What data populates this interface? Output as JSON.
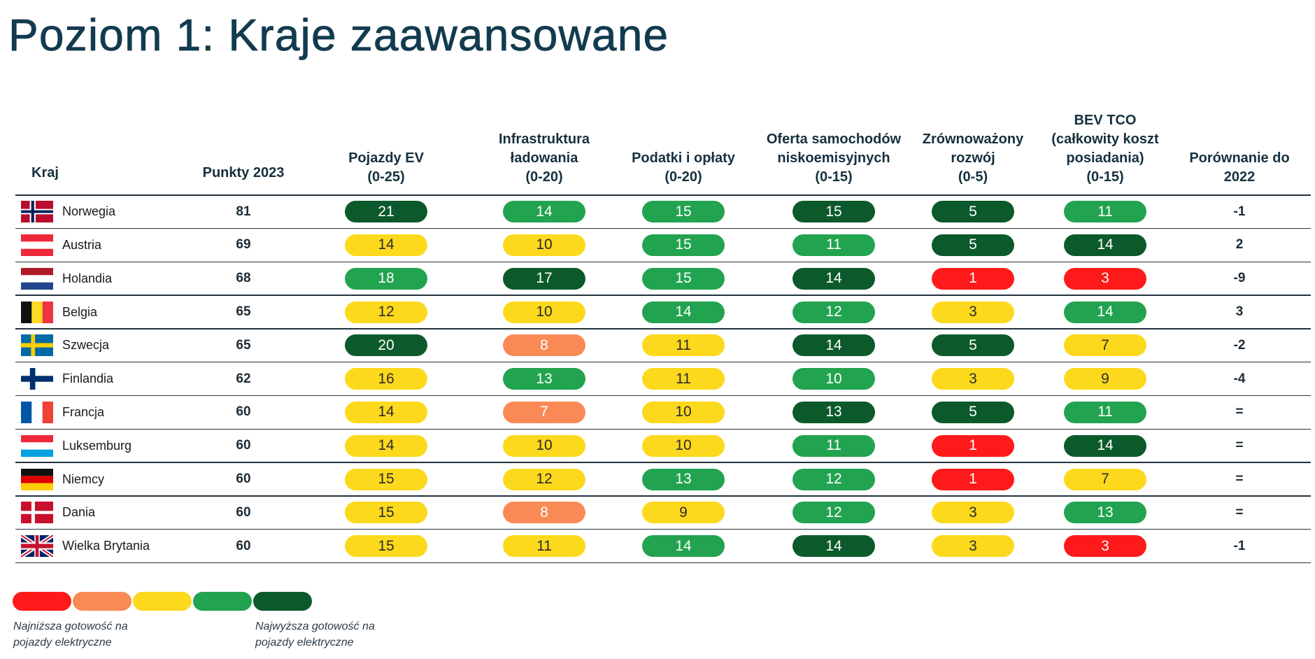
{
  "chart_data": {
    "type": "table",
    "title": "Poziom 1: Kraje zaawansowane",
    "columns": {
      "country": [
        "Kraj"
      ],
      "points": [
        "Punkty 2023"
      ],
      "ev": [
        "Pojazdy EV",
        "(0-25)"
      ],
      "charging": [
        "Infrastruktura",
        "ładowania",
        "(0-20)"
      ],
      "taxes": [
        "Podatki i opłaty",
        "(0-20)"
      ],
      "offer": [
        "Oferta samochodów",
        "niskoemisyjnych",
        "(0-15)"
      ],
      "sustainability": [
        "Zrównoważony",
        "rozwój",
        "(0-5)"
      ],
      "tco": [
        "BEV TCO",
        "(całkowity koszt",
        "posiadania)",
        "(0-15)"
      ],
      "change": [
        "Porównanie do",
        "2022"
      ]
    },
    "rows": [
      {
        "country": "Norwegia",
        "flag": "norway",
        "points": 81,
        "change": "-1",
        "scores": {
          "ev": {
            "value": 21,
            "level": 5
          },
          "charging": {
            "value": 14,
            "level": 4
          },
          "taxes": {
            "value": 15,
            "level": 4
          },
          "offer": {
            "value": 15,
            "level": 5
          },
          "sustainability": {
            "value": 5,
            "level": 5
          },
          "tco": {
            "value": 11,
            "level": 4
          }
        }
      },
      {
        "country": "Austria",
        "flag": "austria",
        "points": 69,
        "change": "2",
        "scores": {
          "ev": {
            "value": 14,
            "level": 3
          },
          "charging": {
            "value": 10,
            "level": 3
          },
          "taxes": {
            "value": 15,
            "level": 4
          },
          "offer": {
            "value": 11,
            "level": 4
          },
          "sustainability": {
            "value": 5,
            "level": 5
          },
          "tco": {
            "value": 14,
            "level": 5
          }
        }
      },
      {
        "country": "Holandia",
        "flag": "netherlands",
        "points": 68,
        "change": "-9",
        "scores": {
          "ev": {
            "value": 18,
            "level": 4
          },
          "charging": {
            "value": 17,
            "level": 5
          },
          "taxes": {
            "value": 15,
            "level": 4
          },
          "offer": {
            "value": 14,
            "level": 5
          },
          "sustainability": {
            "value": 1,
            "level": 1
          },
          "tco": {
            "value": 3,
            "level": 1
          }
        }
      },
      {
        "country": "Belgia",
        "flag": "belgium",
        "points": 65,
        "change": "3",
        "scores": {
          "ev": {
            "value": 12,
            "level": 3
          },
          "charging": {
            "value": 10,
            "level": 3
          },
          "taxes": {
            "value": 14,
            "level": 4
          },
          "offer": {
            "value": 12,
            "level": 4
          },
          "sustainability": {
            "value": 3,
            "level": 3
          },
          "tco": {
            "value": 14,
            "level": 4
          }
        }
      },
      {
        "country": "Szwecja",
        "flag": "sweden",
        "points": 65,
        "change": "-2",
        "scores": {
          "ev": {
            "value": 20,
            "level": 5
          },
          "charging": {
            "value": 8,
            "level": 2
          },
          "taxes": {
            "value": 11,
            "level": 3
          },
          "offer": {
            "value": 14,
            "level": 5
          },
          "sustainability": {
            "value": 5,
            "level": 5
          },
          "tco": {
            "value": 7,
            "level": 3
          }
        }
      },
      {
        "country": "Finlandia",
        "flag": "finland",
        "points": 62,
        "change": "-4",
        "scores": {
          "ev": {
            "value": 16,
            "level": 3
          },
          "charging": {
            "value": 13,
            "level": 4
          },
          "taxes": {
            "value": 11,
            "level": 3
          },
          "offer": {
            "value": 10,
            "level": 4
          },
          "sustainability": {
            "value": 3,
            "level": 3
          },
          "tco": {
            "value": 9,
            "level": 3
          }
        }
      },
      {
        "country": "Francja",
        "flag": "france",
        "points": 60,
        "change": "=",
        "scores": {
          "ev": {
            "value": 14,
            "level": 3
          },
          "charging": {
            "value": 7,
            "level": 2
          },
          "taxes": {
            "value": 10,
            "level": 3
          },
          "offer": {
            "value": 13,
            "level": 5
          },
          "sustainability": {
            "value": 5,
            "level": 5
          },
          "tco": {
            "value": 11,
            "level": 4
          }
        }
      },
      {
        "country": "Luksemburg",
        "flag": "luxembourg",
        "points": 60,
        "change": "=",
        "scores": {
          "ev": {
            "value": 14,
            "level": 3
          },
          "charging": {
            "value": 10,
            "level": 3
          },
          "taxes": {
            "value": 10,
            "level": 3
          },
          "offer": {
            "value": 11,
            "level": 4
          },
          "sustainability": {
            "value": 1,
            "level": 1
          },
          "tco": {
            "value": 14,
            "level": 5
          }
        }
      },
      {
        "country": "Niemcy",
        "flag": "germany",
        "points": 60,
        "change": "=",
        "scores": {
          "ev": {
            "value": 15,
            "level": 3
          },
          "charging": {
            "value": 12,
            "level": 3
          },
          "taxes": {
            "value": 13,
            "level": 4
          },
          "offer": {
            "value": 12,
            "level": 4
          },
          "sustainability": {
            "value": 1,
            "level": 1
          },
          "tco": {
            "value": 7,
            "level": 3
          }
        }
      },
      {
        "country": "Dania",
        "flag": "denmark",
        "points": 60,
        "change": "=",
        "scores": {
          "ev": {
            "value": 15,
            "level": 3
          },
          "charging": {
            "value": 8,
            "level": 2
          },
          "taxes": {
            "value": 9,
            "level": 3
          },
          "offer": {
            "value": 12,
            "level": 4
          },
          "sustainability": {
            "value": 3,
            "level": 3
          },
          "tco": {
            "value": 13,
            "level": 4
          }
        }
      },
      {
        "country": "Wielka Brytania",
        "flag": "uk",
        "points": 60,
        "change": "-1",
        "scores": {
          "ev": {
            "value": 15,
            "level": 3
          },
          "charging": {
            "value": 11,
            "level": 3
          },
          "taxes": {
            "value": 14,
            "level": 4
          },
          "offer": {
            "value": 14,
            "level": 5
          },
          "sustainability": {
            "value": 3,
            "level": 3
          },
          "tco": {
            "value": 3,
            "level": 1
          }
        }
      }
    ],
    "legend": {
      "levels": [
        1,
        2,
        3,
        4,
        5
      ],
      "low_label": [
        "Najniższa gotowość na",
        "pojazdy elektryczne"
      ],
      "high_label": [
        "Najwyższa gotowość na",
        "pojazdy elektryczne"
      ]
    }
  },
  "colors": {
    "levels": [
      "#fe1a1a",
      "#f98a55",
      "#fcd91c",
      "#22a34f",
      "#0c5a2b"
    ]
  }
}
